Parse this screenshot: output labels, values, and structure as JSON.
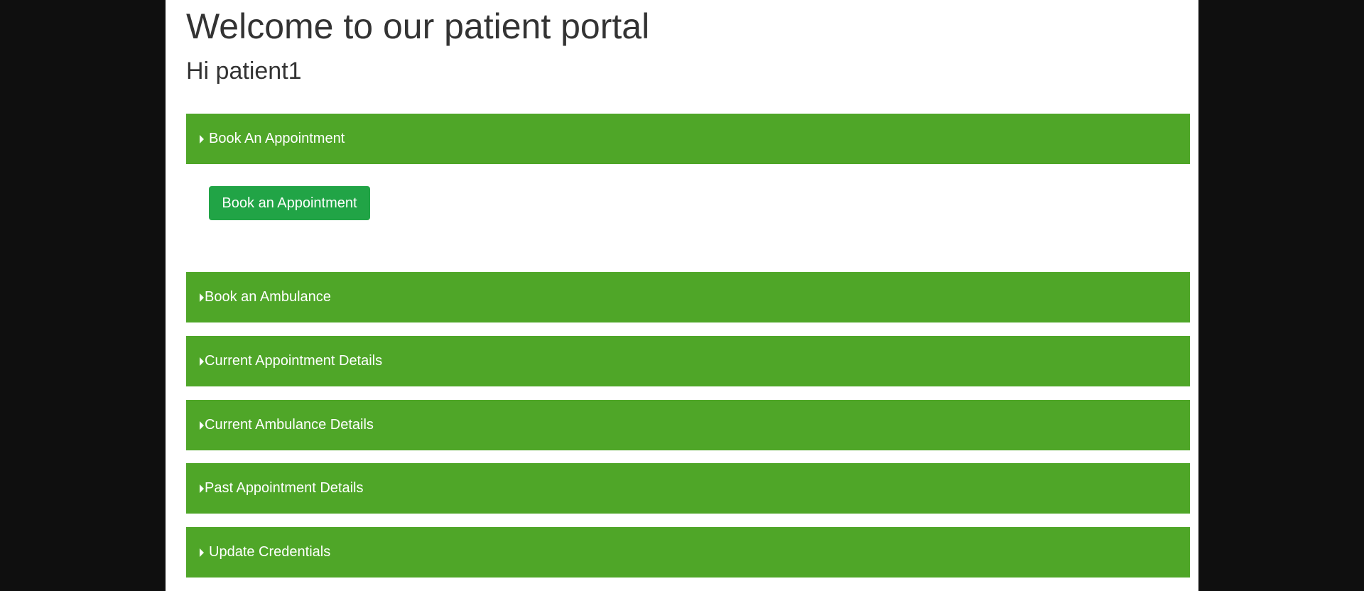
{
  "page": {
    "title": "Welcome to our patient portal",
    "greeting": "Hi patient1"
  },
  "panels": [
    {
      "label": "Book An Appointment",
      "icon": "caret-right-icon",
      "expanded": true
    },
    {
      "label": "Book an Ambulance",
      "icon": "caret-right-icon",
      "expanded": false
    },
    {
      "label": "Current Appointment Details",
      "icon": "caret-right-icon",
      "expanded": false
    },
    {
      "label": "Current Ambulance Details",
      "icon": "caret-right-icon",
      "expanded": false
    },
    {
      "label": "Past Appointment Details",
      "icon": "caret-right-icon",
      "expanded": false
    },
    {
      "label": "Update Credentials",
      "icon": "caret-right-icon",
      "expanded": false
    }
  ],
  "book_appointment_panel": {
    "button_label": "Book an Appointment"
  },
  "colors": {
    "panel_header": "#4fa628",
    "button": "#21a446",
    "text": "#333333",
    "outer_background": "#0f0f0f"
  }
}
